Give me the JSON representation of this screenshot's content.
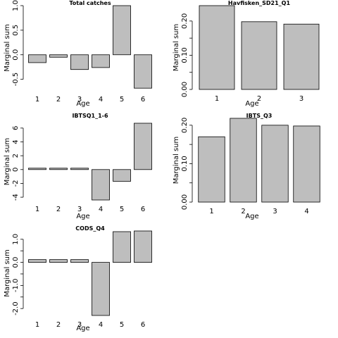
{
  "chart_data": [
    {
      "type": "bar",
      "title": "Total catches",
      "xlabel": "Age",
      "ylabel": "Marginal sum",
      "categories": [
        "1",
        "2",
        "3",
        "4",
        "5",
        "6"
      ],
      "values": [
        -0.16,
        -0.05,
        -0.3,
        -0.26,
        1.0,
        -0.68
      ],
      "ylim": [
        -0.72,
        1.0
      ],
      "yticks": [
        -0.5,
        0.0,
        0.5,
        1.0
      ],
      "ytick_labels": [
        "-0.5",
        "0.0",
        "0.5",
        "1.0"
      ],
      "grid": false,
      "legend": "none"
    },
    {
      "type": "bar",
      "title": "Havfisken_SD21_Q1",
      "xlabel": "Age",
      "ylabel": "Marginal sum",
      "categories": [
        "1",
        "2",
        "3"
      ],
      "values": [
        0.245,
        0.198,
        0.191
      ],
      "ylim": [
        0.0,
        0.245
      ],
      "yticks": [
        0.0,
        0.05,
        0.1,
        0.15,
        0.2
      ],
      "ytick_labels": [
        "0.00",
        "",
        "0.10",
        "",
        "0.20"
      ],
      "grid": false,
      "legend": "none"
    },
    {
      "type": "bar",
      "title": "IBTSQ1_1-6",
      "xlabel": "Age",
      "ylabel": "Marginal sum",
      "categories": [
        "1",
        "2",
        "3",
        "4",
        "5",
        "6"
      ],
      "values": [
        0.2,
        0.2,
        0.2,
        -4.4,
        -1.7,
        6.7
      ],
      "ylim": [
        -4.4,
        6.7
      ],
      "yticks": [
        -4,
        -2,
        0,
        2,
        4,
        6
      ],
      "ytick_labels": [
        "-4",
        "-2",
        "0",
        "2",
        "4",
        "6"
      ],
      "grid": false,
      "legend": "none"
    },
    {
      "type": "bar",
      "title": "IBTS_Q3",
      "xlabel": "Age",
      "ylabel": "Marginal sum",
      "categories": [
        "1",
        "2",
        "3",
        "4"
      ],
      "values": [
        0.17,
        0.218,
        0.2,
        0.198
      ],
      "ylim": [
        0.0,
        0.218
      ],
      "yticks": [
        0.0,
        0.05,
        0.1,
        0.15,
        0.2
      ],
      "ytick_labels": [
        "0.00",
        "",
        "0.10",
        "",
        "0.20"
      ],
      "grid": false,
      "legend": "none"
    },
    {
      "type": "bar",
      "title": "CODS_Q4",
      "xlabel": "Age",
      "ylabel": "Marginal sum",
      "categories": [
        "1",
        "2",
        "3",
        "4",
        "5",
        "6"
      ],
      "values": [
        0.12,
        0.12,
        0.12,
        -2.3,
        1.33,
        1.36
      ],
      "ylim": [
        -2.3,
        1.36
      ],
      "yticks": [
        -2.0,
        -1.5,
        -1.0,
        -0.5,
        0.0,
        0.5,
        1.0
      ],
      "ytick_labels": [
        "-2.0",
        "",
        "-1.0",
        "",
        "0.0",
        "",
        "1.0"
      ],
      "grid": false,
      "legend": "none"
    }
  ]
}
